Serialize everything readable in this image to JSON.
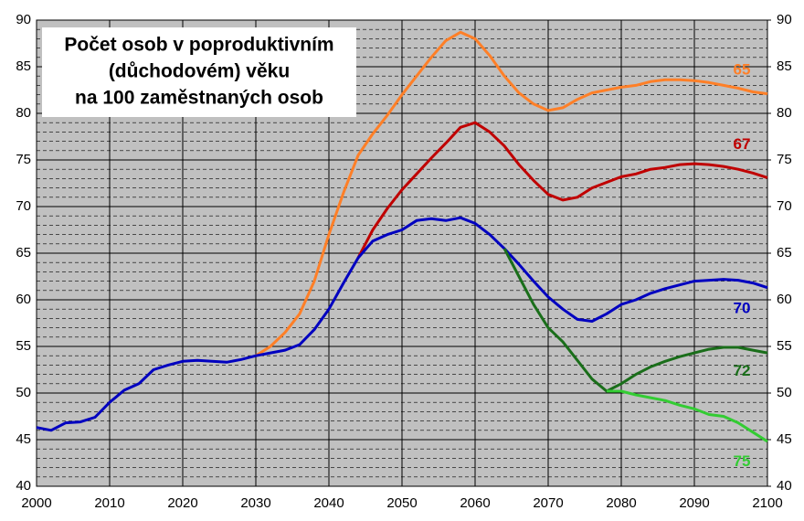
{
  "chart_data": {
    "type": "line",
    "title": [
      "Počet osob v poproduktivním",
      "(důchodovém) věku",
      "na 100 zaměstnaných osob"
    ],
    "x": [
      2000,
      2002,
      2004,
      2006,
      2008,
      2010,
      2012,
      2014,
      2016,
      2018,
      2020,
      2022,
      2024,
      2026,
      2028,
      2030,
      2032,
      2034,
      2036,
      2038,
      2040,
      2042,
      2044,
      2046,
      2048,
      2050,
      2052,
      2054,
      2056,
      2058,
      2060,
      2062,
      2064,
      2066,
      2068,
      2070,
      2072,
      2074,
      2076,
      2078,
      2080,
      2082,
      2084,
      2086,
      2088,
      2090,
      2092,
      2094,
      2096,
      2098,
      2100
    ],
    "series": [
      {
        "name": "65",
        "color": "#ff7f27",
        "values": [
          null,
          null,
          null,
          null,
          null,
          null,
          null,
          null,
          null,
          null,
          null,
          null,
          null,
          null,
          null,
          54.0,
          55.0,
          56.5,
          58.5,
          62.0,
          67.0,
          71.5,
          75.5,
          77.8,
          79.8,
          82.0,
          84.0,
          86.0,
          87.8,
          88.7,
          88.0,
          86.2,
          84.0,
          82.2,
          81.0,
          80.3,
          80.6,
          81.5,
          82.2,
          82.5,
          82.8,
          83.0,
          83.4,
          83.6,
          83.6,
          83.5,
          83.3,
          83.0,
          82.7,
          82.3,
          82.1
        ]
      },
      {
        "name": "67",
        "color": "#c00000",
        "values": [
          null,
          null,
          null,
          null,
          null,
          null,
          null,
          null,
          null,
          null,
          null,
          null,
          null,
          null,
          null,
          null,
          null,
          null,
          null,
          null,
          null,
          null,
          64.5,
          67.5,
          69.8,
          71.8,
          73.5,
          75.2,
          76.8,
          78.5,
          79.0,
          78.0,
          76.5,
          74.5,
          72.8,
          71.3,
          70.7,
          71.0,
          72.0,
          72.6,
          73.2,
          73.5,
          74.0,
          74.2,
          74.5,
          74.6,
          74.5,
          74.3,
          74.0,
          73.6,
          73.1
        ]
      },
      {
        "name": "70",
        "color": "#0000c0",
        "values": [
          46.3,
          46.0,
          46.8,
          46.9,
          47.4,
          49.0,
          50.3,
          51.0,
          52.5,
          53.0,
          53.4,
          53.5,
          53.4,
          53.3,
          53.6,
          54.0,
          54.3,
          54.6,
          55.2,
          56.8,
          59.0,
          61.8,
          64.5,
          66.3,
          67.0,
          67.5,
          68.5,
          68.7,
          68.5,
          68.8,
          68.2,
          67.0,
          65.5,
          63.8,
          62.0,
          60.3,
          59.0,
          57.9,
          57.7,
          58.5,
          59.5,
          60.0,
          60.7,
          61.2,
          61.6,
          62.0,
          62.1,
          62.2,
          62.1,
          61.8,
          61.3
        ]
      },
      {
        "name": "72",
        "color": "#1a6e1a",
        "values": [
          null,
          null,
          null,
          null,
          null,
          null,
          null,
          null,
          null,
          null,
          null,
          null,
          null,
          null,
          null,
          null,
          null,
          null,
          null,
          null,
          null,
          null,
          null,
          null,
          null,
          null,
          null,
          null,
          null,
          null,
          null,
          null,
          65.5,
          62.5,
          59.5,
          57.0,
          55.5,
          53.5,
          51.5,
          50.2,
          51.0,
          52.0,
          52.8,
          53.4,
          53.9,
          54.3,
          54.7,
          54.9,
          54.9,
          54.6,
          54.3
        ]
      },
      {
        "name": "75",
        "color": "#33cc33",
        "values": [
          null,
          null,
          null,
          null,
          null,
          null,
          null,
          null,
          null,
          null,
          null,
          null,
          null,
          null,
          null,
          null,
          null,
          null,
          null,
          null,
          null,
          null,
          null,
          null,
          null,
          null,
          null,
          null,
          null,
          null,
          null,
          null,
          null,
          null,
          null,
          null,
          null,
          null,
          null,
          50.2,
          50.2,
          49.8,
          49.5,
          49.2,
          48.7,
          48.3,
          47.7,
          47.5,
          46.8,
          45.8,
          44.8
        ]
      }
    ],
    "xlim": [
      2000,
      2100
    ],
    "xticks": [
      2000,
      2010,
      2020,
      2030,
      2040,
      2050,
      2060,
      2070,
      2080,
      2090,
      2100
    ],
    "ylim": [
      40,
      90
    ],
    "yticks": [
      40,
      45,
      50,
      55,
      60,
      65,
      70,
      75,
      80,
      85,
      90
    ],
    "y2lim": [
      40,
      90
    ],
    "y2ticks": [
      40,
      45,
      50,
      55,
      60,
      65,
      70,
      75,
      80,
      85,
      90
    ],
    "grid": true
  }
}
